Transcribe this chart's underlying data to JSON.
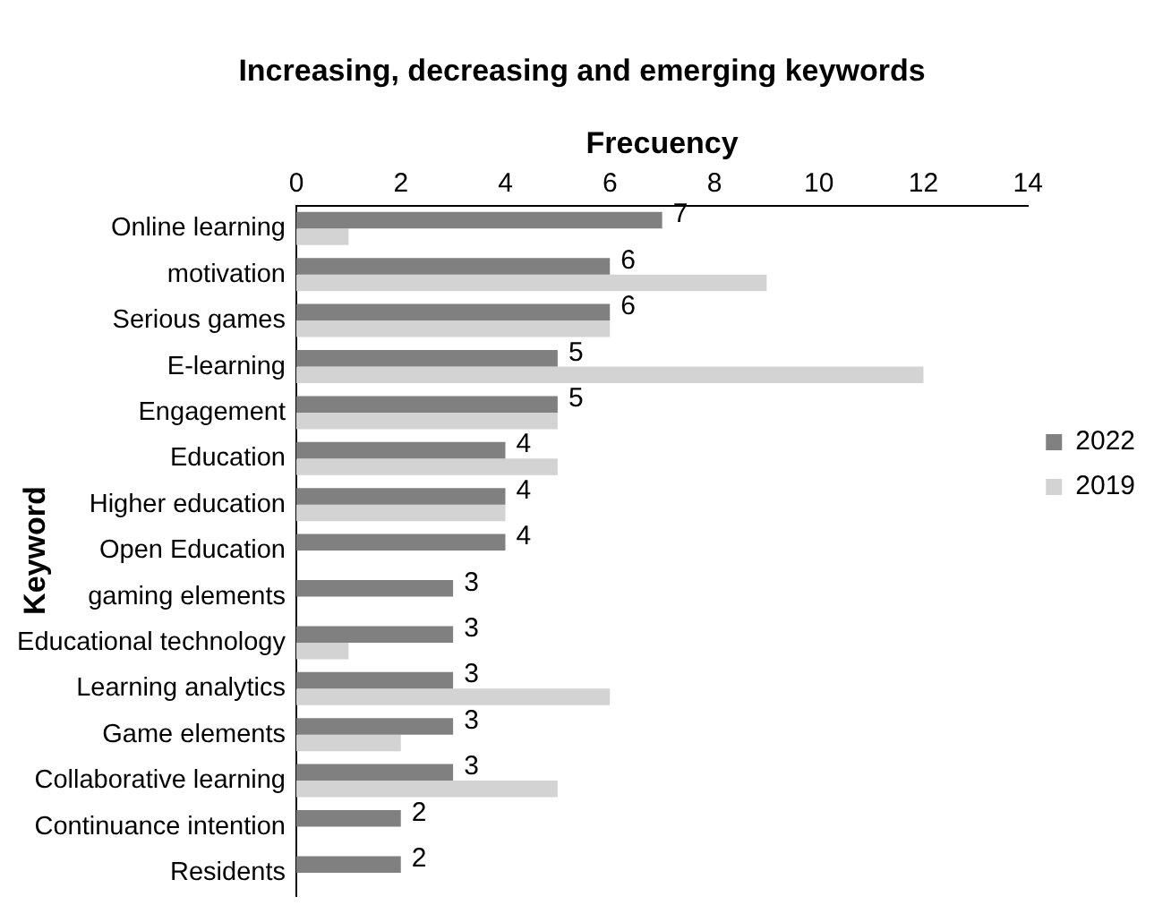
{
  "chart_data": {
    "type": "bar",
    "orientation": "horizontal",
    "title": "Increasing, decreasing and emerging keywords",
    "xlabel": "Frecuency",
    "ylabel": "Keyword",
    "categories": [
      "Online learning",
      "motivation",
      "Serious games",
      "E-learning",
      "Engagement",
      "Education",
      "Higher education",
      "Open Education",
      "gaming elements",
      "Educational technology",
      "Learning analytics",
      "Game elements",
      "Collaborative learning",
      "Continuance intention",
      "Residents"
    ],
    "series": [
      {
        "name": "2022",
        "color": "#808080",
        "values": [
          7,
          6,
          6,
          5,
          5,
          4,
          4,
          4,
          3,
          3,
          3,
          3,
          3,
          2,
          2
        ],
        "value_labels": [
          "7",
          "6",
          "6",
          "5",
          "5",
          "4",
          "4",
          "4",
          "3",
          "3",
          "3",
          "3",
          "3",
          "2",
          "2"
        ]
      },
      {
        "name": "2019",
        "color": "#d3d3d3",
        "values": [
          1,
          9,
          6,
          12,
          5,
          5,
          4,
          null,
          null,
          1,
          6,
          2,
          5,
          null,
          null
        ]
      }
    ],
    "xlim": [
      0,
      14
    ],
    "xticks": [
      0,
      2,
      4,
      6,
      8,
      10,
      12,
      14
    ],
    "grid": false,
    "legend": "right"
  }
}
